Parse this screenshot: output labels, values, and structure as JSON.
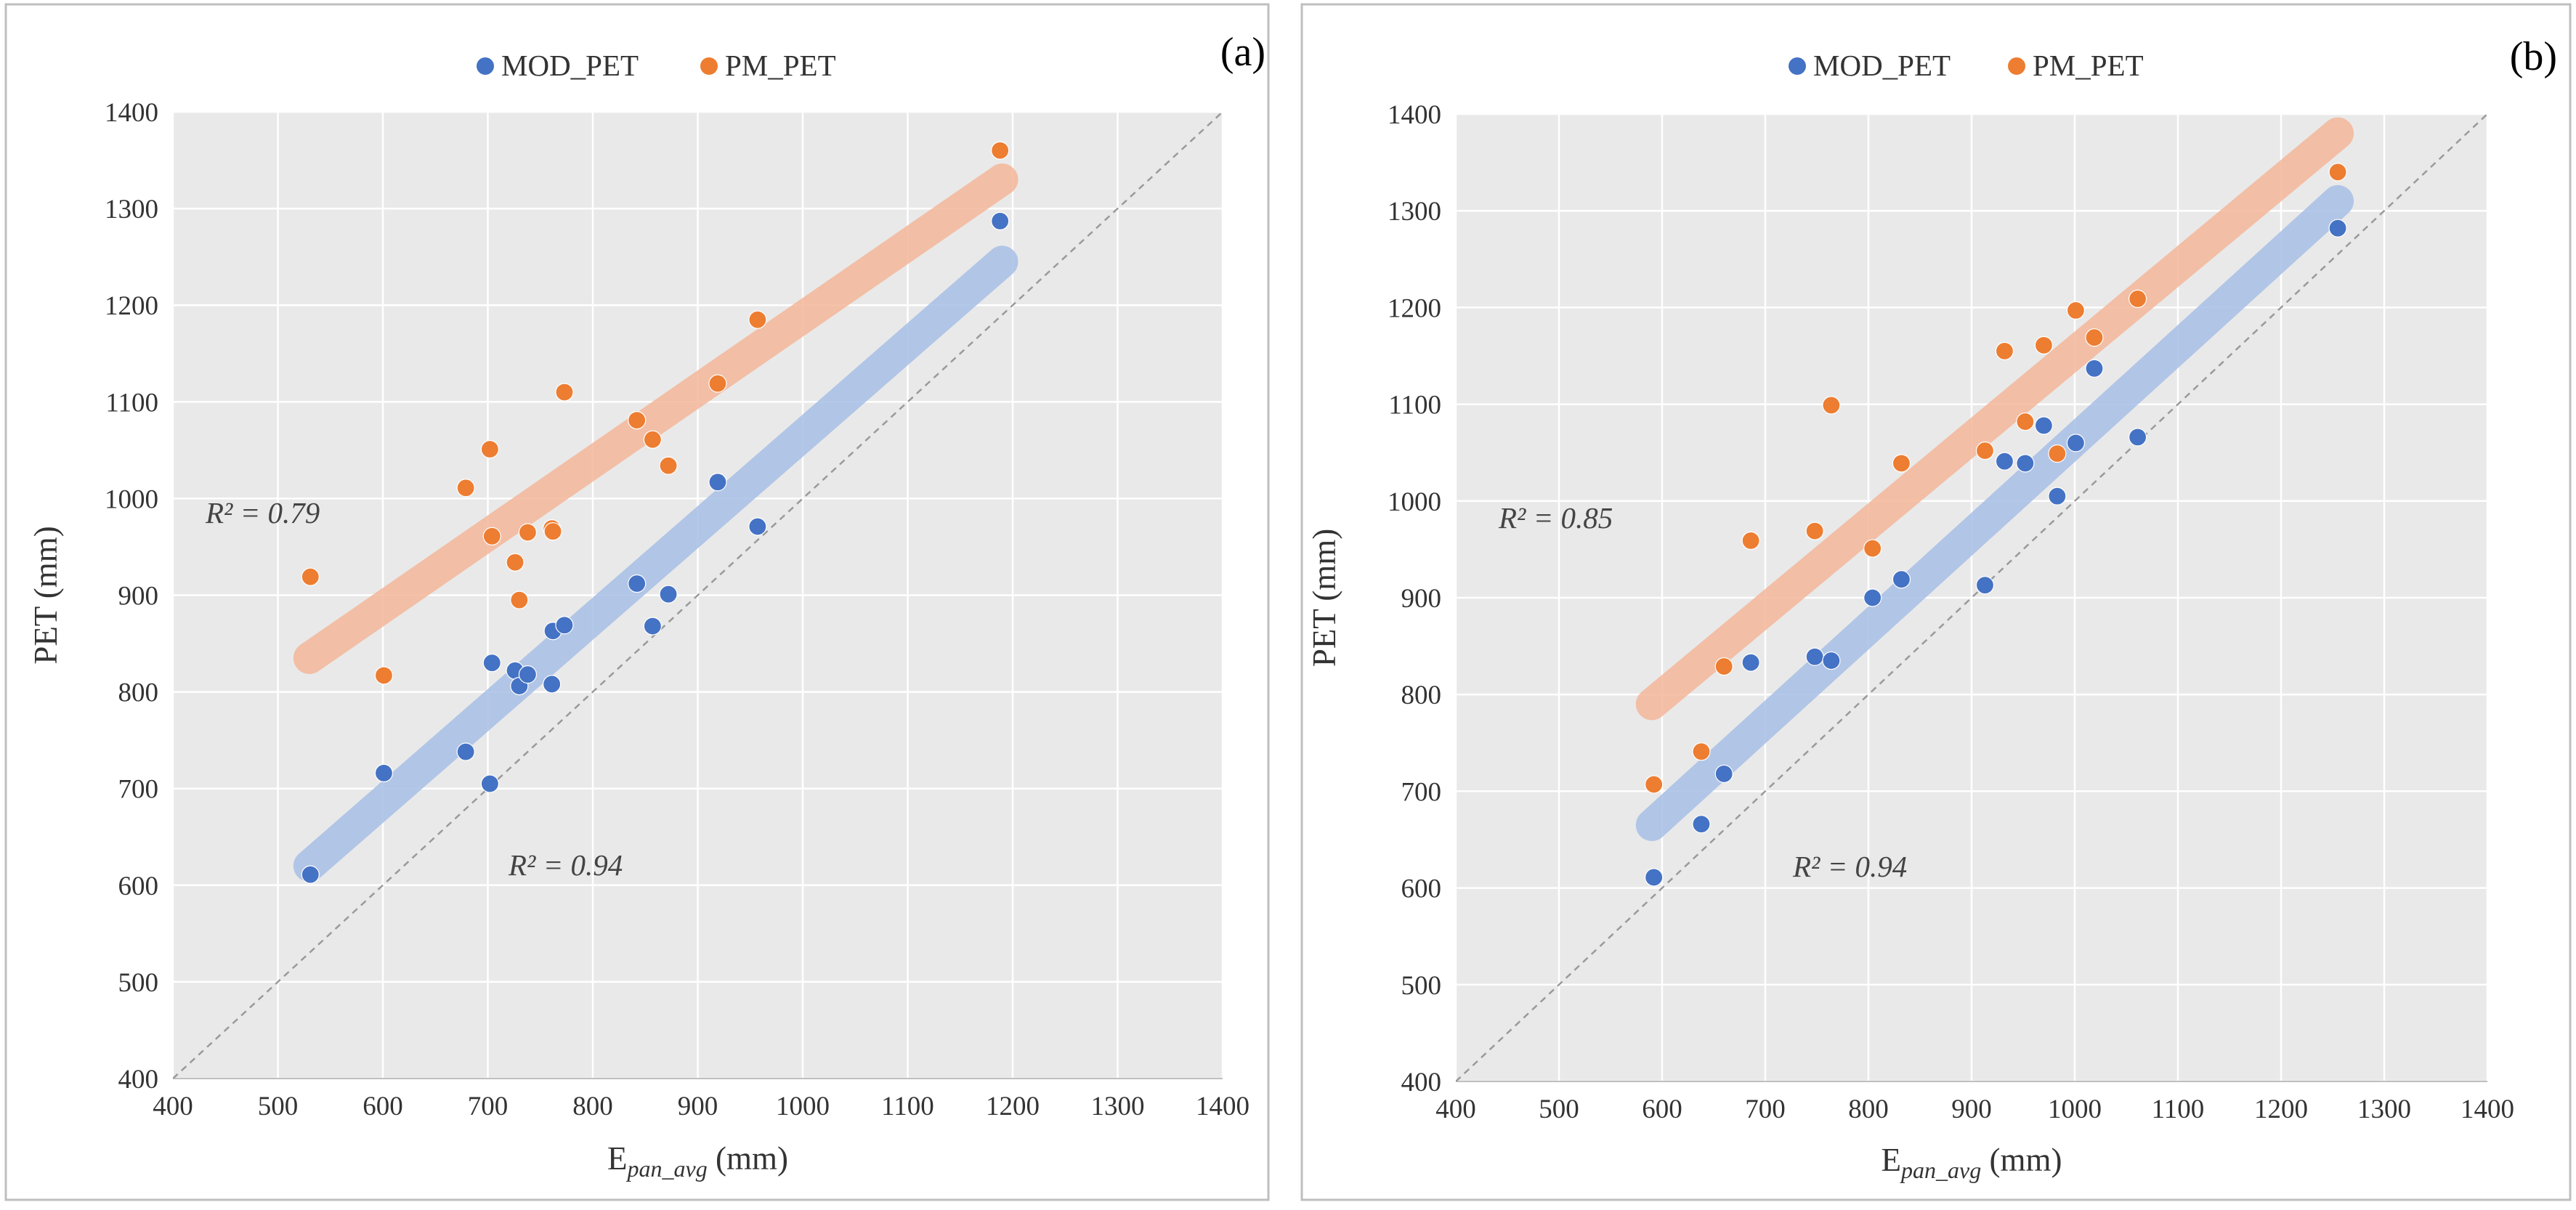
{
  "chart_data": [
    {
      "type": "scatter",
      "panel_label": "(a)",
      "xlabel": "E",
      "xlabel_sub": "pan_avg",
      "xlabel_unit": " (mm)",
      "ylabel": "PET (mm)",
      "xlim": [
        400,
        1400
      ],
      "ylim": [
        400,
        1400
      ],
      "xticks": [
        "400",
        "500",
        "600",
        "700",
        "800",
        "900",
        "1000",
        "1100",
        "1200",
        "1300",
        "1400"
      ],
      "yticks": [
        "400",
        "500",
        "600",
        "700",
        "800",
        "900",
        "1000",
        "1100",
        "1200",
        "1300",
        "1400"
      ],
      "grid": true,
      "legend_position": "top-center",
      "reference_line": "1:1",
      "series": [
        {
          "name": "MOD_PET",
          "color": "#4472C4",
          "trend_color": "#A8BFE6",
          "trend_x": [
            530,
            1190
          ],
          "trend_y": [
            620,
            1245
          ],
          "r2": "R² = 0.94",
          "points": [
            [
              531,
              611
            ],
            [
              601,
              716
            ],
            [
              679,
              738
            ],
            [
              702,
              705
            ],
            [
              704,
              830
            ],
            [
              726,
              822
            ],
            [
              730,
              806
            ],
            [
              738,
              818
            ],
            [
              761,
              808
            ],
            [
              762,
              863
            ],
            [
              773,
              869
            ],
            [
              842,
              912
            ],
            [
              857,
              868
            ],
            [
              872,
              901
            ],
            [
              919,
              1017
            ],
            [
              957,
              971
            ],
            [
              1188,
              1287
            ]
          ]
        },
        {
          "name": "PM_PET",
          "color": "#ED7D31",
          "trend_color": "#F4B79A",
          "trend_x": [
            530,
            1190
          ],
          "trend_y": [
            835,
            1330
          ],
          "r2": "R² = 0.79",
          "points": [
            [
              531,
              919
            ],
            [
              601,
              817
            ],
            [
              679,
              1011
            ],
            [
              702,
              1051
            ],
            [
              704,
              961
            ],
            [
              726,
              934
            ],
            [
              730,
              895
            ],
            [
              738,
              965
            ],
            [
              761,
              969
            ],
            [
              762,
              966
            ],
            [
              773,
              1110
            ],
            [
              842,
              1081
            ],
            [
              857,
              1061
            ],
            [
              872,
              1034
            ],
            [
              919,
              1119
            ],
            [
              957,
              1185
            ],
            [
              1188,
              1360
            ]
          ]
        }
      ]
    },
    {
      "type": "scatter",
      "panel_label": "(b)",
      "xlabel": "E",
      "xlabel_sub": "pan_avg",
      "xlabel_unit": " (mm)",
      "ylabel": "PET (mm)",
      "xlim": [
        400,
        1400
      ],
      "ylim": [
        400,
        1400
      ],
      "xticks": [
        "400",
        "500",
        "600",
        "700",
        "800",
        "900",
        "1000",
        "1100",
        "1200",
        "1300",
        "1400"
      ],
      "yticks": [
        "400",
        "500",
        "600",
        "700",
        "800",
        "900",
        "1000",
        "1100",
        "1200",
        "1300",
        "1400"
      ],
      "grid": true,
      "legend_position": "top-center",
      "reference_line": "1:1",
      "series": [
        {
          "name": "MOD_PET",
          "color": "#4472C4",
          "trend_color": "#A8BFE6",
          "trend_x": [
            590,
            1255
          ],
          "trend_y": [
            665,
            1310
          ],
          "r2": "R² = 0.94",
          "points": [
            [
              592,
              611
            ],
            [
              638,
              666
            ],
            [
              660,
              718
            ],
            [
              686,
              833
            ],
            [
              748,
              839
            ],
            [
              764,
              835
            ],
            [
              804,
              900
            ],
            [
              832,
              919
            ],
            [
              913,
              913
            ],
            [
              932,
              1041
            ],
            [
              952,
              1039
            ],
            [
              970,
              1078
            ],
            [
              983,
              1005
            ],
            [
              1001,
              1060
            ],
            [
              1019,
              1137
            ],
            [
              1061,
              1066
            ],
            [
              1255,
              1282
            ]
          ]
        },
        {
          "name": "PM_PET",
          "color": "#ED7D31",
          "trend_color": "#F4B79A",
          "trend_x": [
            590,
            1255
          ],
          "trend_y": [
            790,
            1380
          ],
          "r2": "R² = 0.85",
          "points": [
            [
              592,
              707
            ],
            [
              638,
              741
            ],
            [
              660,
              829
            ],
            [
              686,
              959
            ],
            [
              748,
              969
            ],
            [
              764,
              1099
            ],
            [
              804,
              951
            ],
            [
              832,
              1039
            ],
            [
              913,
              1052
            ],
            [
              932,
              1155
            ],
            [
              952,
              1082
            ],
            [
              970,
              1161
            ],
            [
              983,
              1049
            ],
            [
              1001,
              1197
            ],
            [
              1019,
              1169
            ],
            [
              1061,
              1209
            ],
            [
              1255,
              1340
            ]
          ]
        }
      ]
    }
  ]
}
